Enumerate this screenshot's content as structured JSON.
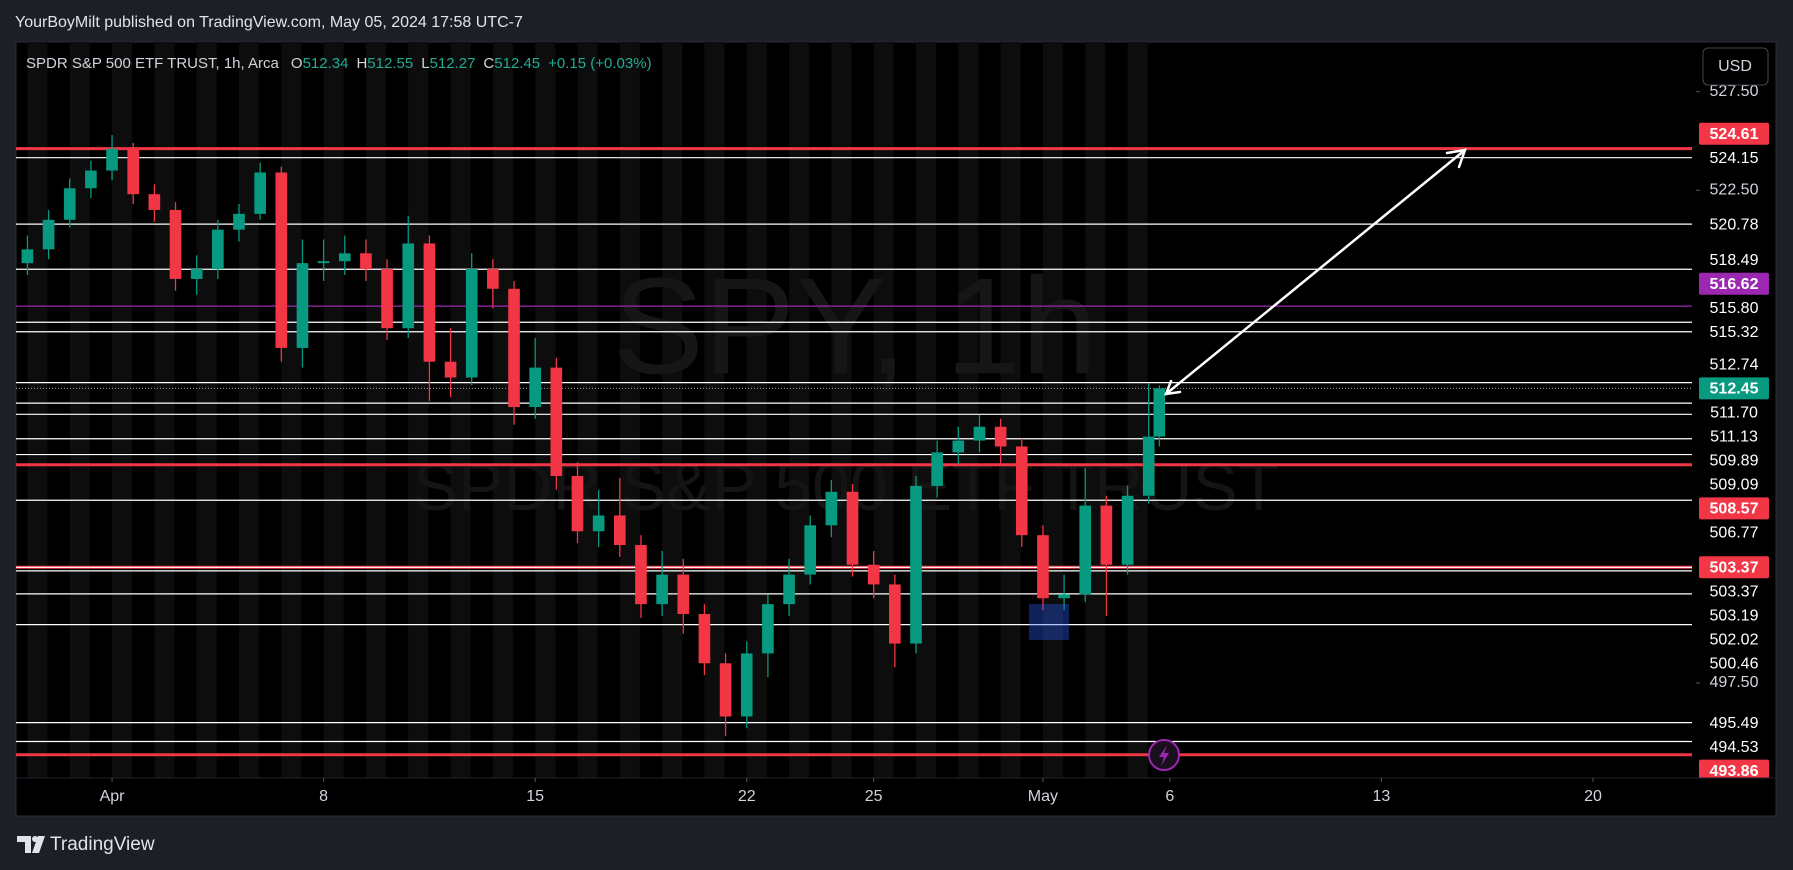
{
  "header": "YourBoyMilt published on TradingView.com, May 05, 2024 17:58 UTC-7",
  "footer": "TradingView",
  "currency": "USD",
  "watermark": {
    "symbol": "SPY, 1h",
    "name": "SPDR S&P 500 ETF TRUST"
  },
  "chart_data": {
    "type": "candlestick",
    "title": "SPDR S&P 500 ETF TRUST, 1h, Arca",
    "ohlc": [
      {
        "key": "O",
        "value": 512.34
      },
      {
        "key": "H",
        "value": 512.55
      },
      {
        "key": "L",
        "value": 512.27
      },
      {
        "key": "C",
        "value": 512.45
      }
    ],
    "change": "+0.15 (+0.03%)",
    "x": [
      -2,
      -1.5,
      -1,
      -0.5,
      0,
      0.5,
      1,
      1.5,
      2,
      2.5,
      3,
      3.5,
      4,
      4.5,
      5,
      5.5,
      6,
      6.5,
      7,
      7.5,
      8,
      8.5,
      9,
      9.5,
      10,
      10.5,
      11,
      11.5,
      12,
      12.5,
      13,
      13.5,
      14,
      14.5,
      15,
      15.5,
      16,
      16.5,
      17,
      17.5,
      18,
      18.5,
      19,
      19.5,
      20,
      20.5,
      21,
      21.5,
      22,
      22.5,
      23,
      23.5,
      24,
      24.5,
      24.75
    ],
    "open": [
      518.8,
      519.5,
      521.0,
      522.6,
      523.5,
      524.6,
      522.3,
      521.5,
      518.0,
      518.5,
      520.5,
      521.3,
      523.4,
      514.5,
      518.8,
      518.9,
      519.3,
      518.5,
      515.5,
      519.8,
      513.8,
      513.0,
      518.5,
      517.5,
      511.5,
      513.5,
      508.0,
      505.2,
      506.0,
      504.5,
      501.5,
      503.0,
      501.0,
      498.5,
      495.8,
      499.0,
      501.5,
      503.0,
      505.5,
      507.2,
      503.5,
      502.5,
      499.5,
      507.5,
      509.2,
      509.8,
      510.5,
      509.5,
      505.0,
      501.8,
      502.0,
      506.5,
      503.5,
      507.0,
      510.0
    ],
    "high": [
      520.2,
      521.5,
      523.1,
      524.0,
      525.3,
      524.9,
      522.8,
      521.9,
      519.2,
      521.0,
      521.8,
      523.9,
      523.7,
      520.0,
      520.0,
      520.2,
      520.0,
      519.0,
      521.2,
      520.2,
      515.5,
      519.3,
      519.0,
      517.9,
      515.0,
      514.0,
      508.7,
      507.3,
      507.9,
      505.0,
      504.2,
      503.8,
      501.5,
      499.0,
      499.6,
      502.0,
      503.8,
      506.0,
      507.8,
      507.6,
      504.2,
      503.0,
      508.0,
      509.8,
      510.5,
      511.1,
      510.9,
      509.9,
      505.5,
      503.0,
      508.4,
      507.0,
      507.5,
      512.7,
      512.6
    ],
    "low": [
      518.2,
      519.0,
      520.6,
      522.1,
      523.0,
      521.8,
      520.9,
      517.4,
      517.2,
      518.0,
      519.9,
      521.0,
      513.8,
      513.5,
      517.9,
      518.2,
      517.9,
      514.9,
      515.0,
      511.8,
      512.0,
      512.6,
      516.5,
      510.6,
      510.9,
      507.3,
      504.6,
      504.4,
      503.9,
      500.8,
      500.9,
      500.0,
      497.9,
      494.8,
      495.2,
      497.8,
      500.9,
      502.5,
      504.9,
      502.9,
      501.8,
      498.3,
      499.0,
      506.9,
      508.6,
      509.2,
      508.6,
      504.4,
      501.2,
      501.2,
      501.6,
      500.9,
      503.0,
      506.6,
      509.5
    ],
    "close": [
      519.5,
      521.0,
      522.6,
      523.5,
      524.6,
      522.3,
      521.5,
      518.0,
      518.5,
      520.5,
      521.3,
      523.4,
      514.5,
      518.8,
      518.9,
      519.3,
      518.5,
      515.5,
      519.8,
      513.8,
      513.0,
      518.5,
      517.5,
      511.5,
      513.5,
      508.0,
      505.2,
      506.0,
      504.5,
      501.5,
      503.0,
      501.0,
      498.5,
      495.8,
      499.0,
      501.5,
      503.0,
      505.5,
      507.2,
      503.5,
      502.5,
      499.5,
      507.5,
      509.2,
      509.8,
      510.5,
      509.5,
      505.0,
      501.8,
      502.0,
      506.5,
      503.5,
      507.0,
      510.0,
      512.45
    ],
    "up_color": "#089981",
    "down_color": "#f23645",
    "xlim": [
      -2.27,
      37.34
    ],
    "xticks": [
      {
        "value": 0,
        "label": "Apr"
      },
      {
        "value": 5,
        "label": "8"
      },
      {
        "value": 10,
        "label": "15"
      },
      {
        "value": 15,
        "label": "22"
      },
      {
        "value": 18,
        "label": "25"
      },
      {
        "value": 22,
        "label": "May"
      },
      {
        "value": 25,
        "label": "6"
      },
      {
        "value": 30,
        "label": "13"
      },
      {
        "value": 35,
        "label": "20"
      }
    ],
    "ylim": [
      492.68,
      530.02
    ],
    "yticks": [
      {
        "value": 497.5,
        "label": "497.50"
      },
      {
        "value": 522.5,
        "label": "522.50"
      },
      {
        "value": 527.5,
        "label": "527.50"
      }
    ],
    "levels": [
      {
        "value": 524.61,
        "color": "#f23645"
      },
      {
        "value": 524.15,
        "color": "#ffffff"
      },
      {
        "value": 520.78,
        "color": "#ffffff"
      },
      {
        "value": 518.49,
        "color": "#ffffff"
      },
      {
        "value": 516.62,
        "color": "#9c27b0"
      },
      {
        "value": 515.8,
        "label": "515.80",
        "color": "#ffffff"
      },
      {
        "value": 515.32,
        "color": "#ffffff"
      },
      {
        "value": 512.74,
        "color": "#ffffff"
      },
      {
        "value": 511.7,
        "label": "511.70",
        "color": "#ffffff"
      },
      {
        "value": 511.13,
        "color": "#ffffff"
      },
      {
        "value": 509.89,
        "color": "#ffffff"
      },
      {
        "value": 509.09,
        "color": "#ffffff"
      },
      {
        "value": 508.57,
        "color": "#f23645"
      },
      {
        "value": 506.77,
        "color": "#ffffff"
      },
      {
        "value": 503.37,
        "color": "#f23645"
      },
      {
        "value": 503.37,
        "color": "#ffffff"
      },
      {
        "value": 503.19,
        "color": "#ffffff"
      },
      {
        "value": 502.02,
        "color": "#ffffff"
      },
      {
        "value": 500.46,
        "color": "#ffffff"
      },
      {
        "value": 495.49,
        "color": "#ffffff"
      },
      {
        "value": 494.53,
        "color": "#ffffff"
      },
      {
        "value": 493.86,
        "color": "#f23645"
      }
    ],
    "last_price": {
      "value": 512.45,
      "color": "#089981"
    }
  }
}
